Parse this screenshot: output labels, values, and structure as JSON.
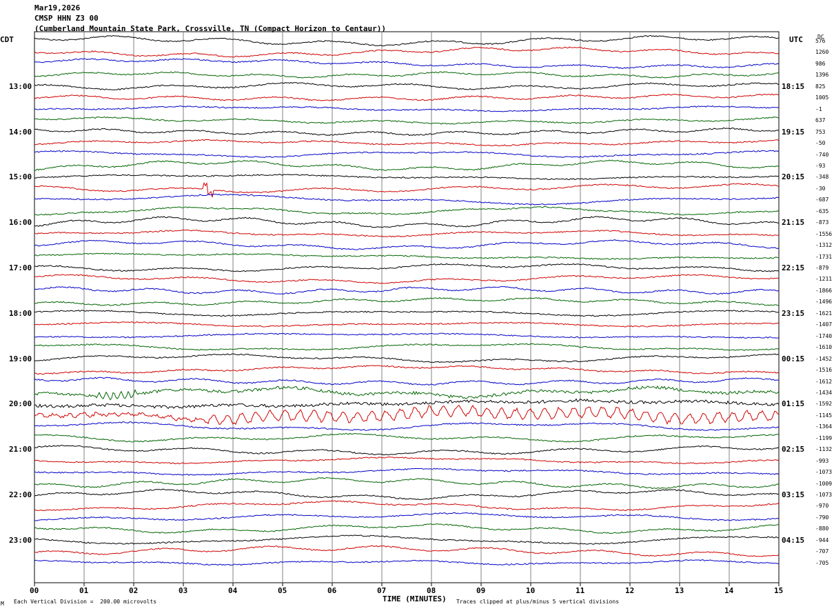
{
  "header": {
    "date": "Mar19,2026",
    "station": "CMSP HHN Z3 00",
    "location": "(Cumberland Mountain State Park, Crossville, TN (Compact Horizon to Centaur))"
  },
  "left_timezone": "CDT",
  "right_timezone": "UTC",
  "dc_label": "DC",
  "footer": {
    "scale": "Each Vertical Division =  200.00 microvolts",
    "clip": "Traces clipped at plus/minus 5 vertical divisions",
    "corner_mark": "M"
  },
  "colors": {
    "black": "#000000",
    "red": "#d00000",
    "blue": "#0000c8",
    "green": "#006400",
    "grid": "#808080"
  },
  "chart_data": {
    "type": "line",
    "xlabel": "TIME (MINUTES)",
    "x_ticks": [
      "00",
      "01",
      "02",
      "03",
      "04",
      "05",
      "06",
      "07",
      "08",
      "09",
      "10",
      "11",
      "12",
      "13",
      "14",
      "15"
    ],
    "xlim": [
      0,
      15
    ],
    "trace_minutes": 15,
    "trace_color_cycle": [
      "black",
      "red",
      "blue",
      "green"
    ],
    "left_hour_labels": [
      "13:00",
      "14:00",
      "15:00",
      "16:00",
      "17:00",
      "18:00",
      "19:00",
      "20:00",
      "21:00",
      "22:00",
      "23:00"
    ],
    "right_hour_labels": [
      "18:15",
      "19:15",
      "20:15",
      "21:15",
      "22:15",
      "23:15",
      "00:15",
      "01:15",
      "02:15",
      "03:15",
      "04:15"
    ],
    "dc_offsets": [
      "576",
      "1260",
      "986",
      "1396",
      "825",
      "1005",
      "-1",
      "637",
      "753",
      "-50",
      "-740",
      "-93",
      "-348",
      "-30",
      "-687",
      "-635",
      "-873",
      "-1556",
      "-1312",
      "-1731",
      "-879",
      "-1211",
      "-1866",
      "-1496",
      "-1621",
      "-1407",
      "-1740",
      "-1610",
      "-1452",
      "-1516",
      "-1612",
      "-1434",
      "-1592",
      "-1145",
      "-1364",
      "-1199",
      "-1132",
      "-993",
      "-1073",
      "-1009",
      "-1073",
      "-970",
      "-790",
      "-880",
      "-944",
      "-707",
      "-705"
    ]
  }
}
